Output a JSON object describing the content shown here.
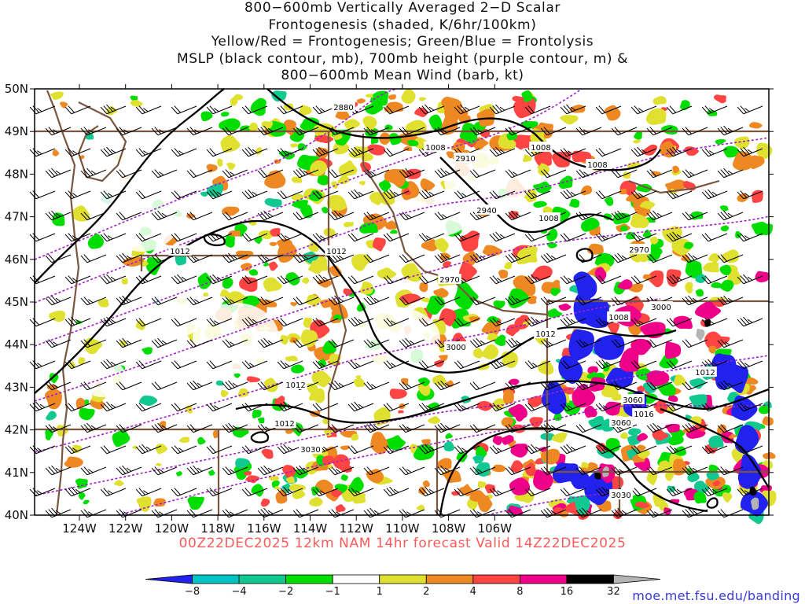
{
  "title_lines": [
    "800−600mb Vertically Averaged 2−D Scalar",
    "Frontogenesis (shaded, K/6hr/100km)",
    "Yellow/Red = Frontogenesis;  Green/Blue = Frontolysis",
    "MSLP (black contour, mb), 700mb height (purple contour, m) &",
    "800−600mb Mean Wind (barb, kt)"
  ],
  "lat_labels": [
    "50N",
    "49N",
    "48N",
    "47N",
    "46N",
    "45N",
    "44N",
    "43N",
    "42N",
    "41N",
    "40N"
  ],
  "lon_labels": [
    "124W",
    "122W",
    "120W",
    "118W",
    "116W",
    "114W",
    "112W",
    "110W",
    "108W",
    "106W"
  ],
  "valid_text": "00Z22DEC2025 12km NAM 14hr forecast Valid 14Z22DEC2025",
  "colorbar": {
    "labels": [
      "−8",
      "−4",
      "−2",
      "−1",
      "1",
      "2",
      "4",
      "8",
      "16",
      "32"
    ],
    "colors": [
      "#2222ee",
      "#00c3c3",
      "#10c890",
      "#00dd00",
      "#ffffff",
      "#e0e030",
      "#ee8822",
      "#ff4444",
      "#ee0088",
      "#000000",
      "#b4b4b4"
    ]
  },
  "pressure_labels": [
    "1008",
    "1008",
    "1008",
    "1008",
    "1008",
    "1012",
    "1012",
    "1012",
    "1012",
    "1012",
    "1012",
    "1016"
  ],
  "height_labels": [
    "2880",
    "2910",
    "2940",
    "2970",
    "2970",
    "3000",
    "3000",
    "3030",
    "3030",
    "3060",
    "3060"
  ],
  "credit": "moe.met.fsu.edu/banding",
  "colors": {
    "mslp_contour": "#000000",
    "height_contour": "#a020c8",
    "boundaries": "#7a5540",
    "valid_text": "#ff5a5a",
    "credit": "#3a3ad8"
  }
}
